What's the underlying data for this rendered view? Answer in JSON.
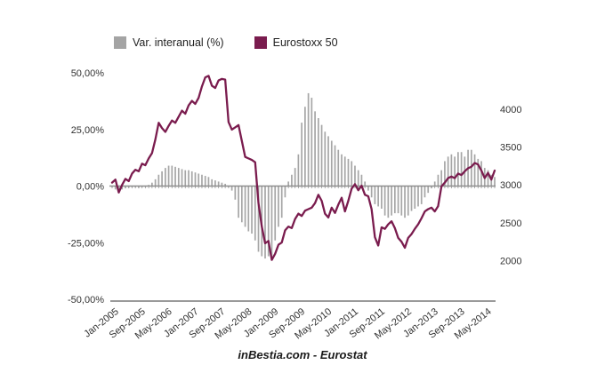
{
  "legend": {
    "items": [
      {
        "label": "Var. interanual (%)",
        "color": "#a4a4a4"
      },
      {
        "label": "Eurostoxx 50",
        "color": "#7a1c4e"
      }
    ]
  },
  "footer": {
    "source_label": "inBestia.com - Eurostat"
  },
  "chart_data": {
    "type": "bar+line",
    "title": "",
    "x_start": "Jan-2005",
    "x_end": "Aug-2014",
    "x_tick_labels": [
      {
        "label": "Jan-2005",
        "month": 0
      },
      {
        "label": "Sep-2005",
        "month": 8
      },
      {
        "label": "May-2006",
        "month": 16
      },
      {
        "label": "Jan-2007",
        "month": 24
      },
      {
        "label": "Sep-2007",
        "month": 32
      },
      {
        "label": "May-2008",
        "month": 40
      },
      {
        "label": "Jan-2009",
        "month": 48
      },
      {
        "label": "Sep-2009",
        "month": 56
      },
      {
        "label": "May-2010",
        "month": 64
      },
      {
        "label": "Jan-2011",
        "month": 72
      },
      {
        "label": "Sep-2011",
        "month": 80
      },
      {
        "label": "May-2012",
        "month": 88
      },
      {
        "label": "Jan-2013",
        "month": 96
      },
      {
        "label": "Sep-2013",
        "month": 104
      },
      {
        "label": "May-2014",
        "month": 112
      }
    ],
    "left_axis": {
      "title": "Var. interanual (%)",
      "max": 50,
      "min": -50,
      "ticks": [
        {
          "label": "50,00%",
          "value": 50
        },
        {
          "label": "25,00%",
          "value": 25
        },
        {
          "label": "0,00%",
          "value": 0
        },
        {
          "label": "-25,00%",
          "value": -25
        },
        {
          "label": "-50,00%",
          "value": -50
        }
      ]
    },
    "right_axis": {
      "title": "Eurostoxx 50",
      "plot_max": 4480,
      "plot_min": 1490,
      "ticks": [
        {
          "label": "4000",
          "value": 4000
        },
        {
          "label": "3500",
          "value": 3500
        },
        {
          "label": "3000",
          "value": 3000
        },
        {
          "label": "2500",
          "value": 2500
        },
        {
          "label": "2000",
          "value": 2000
        }
      ]
    },
    "grid": "off",
    "legend_position": "top",
    "series": [
      {
        "name": "Var. interanual (%)",
        "type": "bar",
        "axis": "left",
        "color": "#a6a6a6",
        "values": [
          -0.5,
          -1.5,
          -2,
          -1.5,
          -1,
          -0.8,
          -0.5,
          -0.5,
          -0.8,
          -0.5,
          -0.4,
          0.5,
          1.5,
          3,
          5,
          6.5,
          8,
          9,
          9,
          8.5,
          8,
          7.5,
          7,
          7,
          6.5,
          6,
          5.5,
          5,
          4.5,
          4,
          3,
          2.5,
          2,
          1.5,
          1,
          -0.5,
          -2,
          -6,
          -14,
          -16,
          -18,
          -20,
          -21,
          -24,
          -29,
          -31,
          -32,
          -31,
          -31,
          -24,
          -18,
          -14,
          -5,
          2,
          5,
          8,
          14,
          28,
          35,
          41,
          39,
          33,
          30,
          27,
          24,
          22,
          20,
          18,
          16,
          14,
          13,
          12,
          11,
          9,
          7,
          5,
          2,
          -2,
          -5,
          -8,
          -9,
          -10,
          -13,
          -14,
          -13,
          -12,
          -12,
          -13,
          -14,
          -13,
          -11,
          -10,
          -9,
          -8,
          -5,
          -3,
          -1,
          2,
          5,
          7,
          11,
          13,
          14,
          13,
          15,
          15,
          13,
          16,
          16,
          14,
          12,
          11,
          8,
          7,
          5,
          4
        ]
      },
      {
        "name": "Eurostoxx 50",
        "type": "line",
        "axis": "right",
        "color": "#7a1c4e",
        "values": [
          3030,
          3070,
          2900,
          3000,
          3080,
          3050,
          3150,
          3200,
          3180,
          3280,
          3260,
          3350,
          3420,
          3600,
          3820,
          3750,
          3700,
          3780,
          3850,
          3820,
          3900,
          3980,
          3940,
          4050,
          4110,
          4070,
          4150,
          4300,
          4420,
          4440,
          4310,
          4280,
          4380,
          4400,
          4390,
          3830,
          3730,
          3760,
          3790,
          3580,
          3370,
          3350,
          3330,
          3300,
          2760,
          2450,
          2230,
          2260,
          2010,
          2090,
          2210,
          2240,
          2400,
          2450,
          2430,
          2550,
          2620,
          2590,
          2660,
          2680,
          2700,
          2760,
          2870,
          2790,
          2620,
          2570,
          2700,
          2630,
          2740,
          2830,
          2650,
          2790,
          2950,
          3010,
          2930,
          2990,
          2870,
          2850,
          2680,
          2310,
          2200,
          2440,
          2420,
          2480,
          2520,
          2430,
          2300,
          2250,
          2170,
          2300,
          2350,
          2420,
          2480,
          2560,
          2650,
          2680,
          2700,
          2650,
          2720,
          2980,
          3030,
          3090,
          3110,
          3090,
          3150,
          3130,
          3180,
          3220,
          3240,
          3290,
          3270,
          3190,
          3090,
          3160,
          3070,
          3190
        ]
      }
    ]
  }
}
